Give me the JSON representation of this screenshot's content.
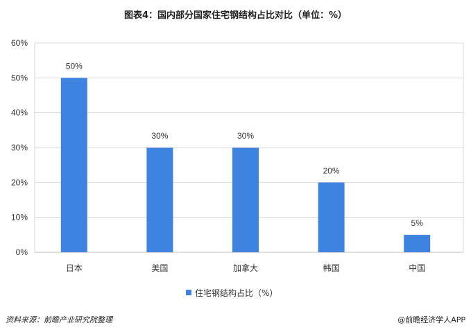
{
  "title": "图表4：国内部分国家住宅钢结构占比对比（单位：%）",
  "footer": {
    "source": "资料来源：前瞻产业研究院整理",
    "brand": "@前瞻经济学人APP"
  },
  "colors": {
    "bar": "#3f83e0",
    "grid": "#d9d9d9",
    "axis": "#bfbfbf"
  },
  "chart_data": {
    "type": "bar",
    "categories": [
      "日本",
      "美国",
      "加拿大",
      "韩国",
      "中国"
    ],
    "series": [
      {
        "name": "住宅钢结构占比（%）",
        "values": [
          50,
          30,
          30,
          20,
          5
        ]
      }
    ],
    "data_labels": [
      "50%",
      "30%",
      "30%",
      "20%",
      "5%"
    ],
    "y_ticks": [
      "0%",
      "10%",
      "20%",
      "30%",
      "40%",
      "50%",
      "60%"
    ],
    "ylim": [
      0,
      60
    ],
    "grid": true,
    "legend_position": "bottom"
  }
}
